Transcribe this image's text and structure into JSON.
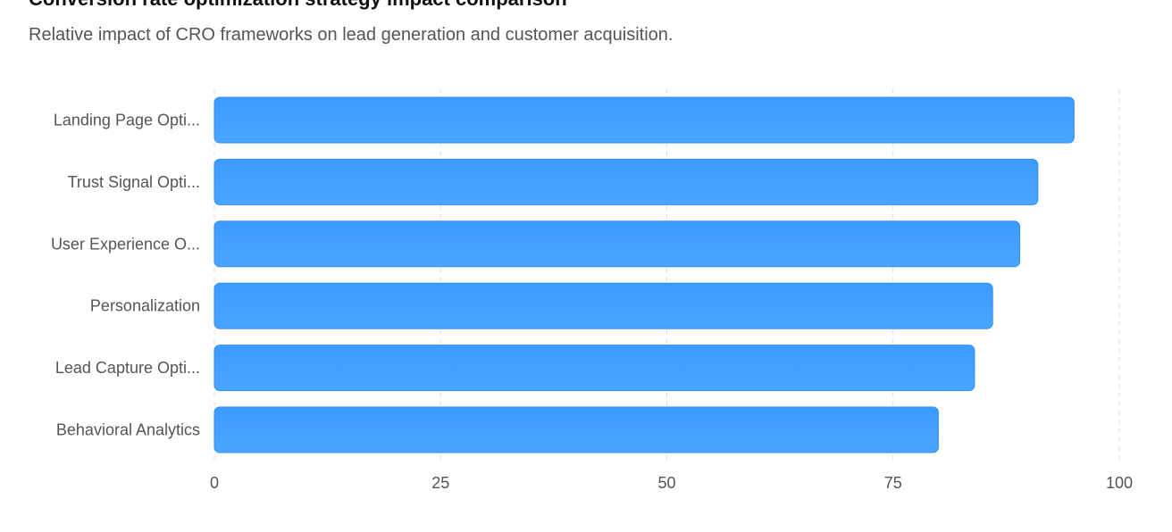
{
  "header": {
    "title": "Conversion rate optimization strategy impact comparison",
    "subtitle": "Relative impact of CRO frameworks on lead generation and customer acquisition."
  },
  "colors": {
    "bar_top": "#3d9bff",
    "bar_bottom": "#4aa5ff",
    "bar_stroke": "#2f8ef5",
    "grid": "#dddddd",
    "label": "#555555"
  },
  "chart_data": {
    "type": "bar",
    "orientation": "horizontal",
    "categories": [
      "Landing Page Opti...",
      "Trust Signal Opti...",
      "User Experience O...",
      "Personalization",
      "Lead Capture Opti...",
      "Behavioral Analytics"
    ],
    "values": [
      95,
      91,
      89,
      86,
      84,
      80
    ],
    "xlim": [
      0,
      100
    ],
    "xticks": [
      0,
      25,
      50,
      75,
      100
    ],
    "grid": "vertical-dashed",
    "legend": "none"
  }
}
